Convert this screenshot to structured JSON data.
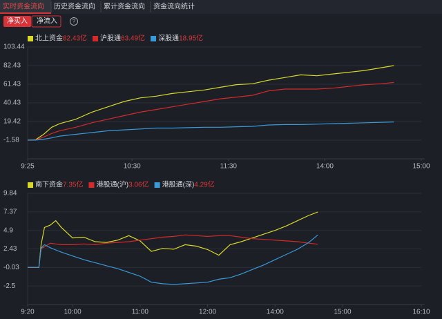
{
  "tabs": [
    "实时资金流向",
    "历史资金流向",
    "累计资金流向",
    "资金流向统计"
  ],
  "toggles": [
    "净买入",
    "净流入"
  ],
  "help": "?",
  "chart_data": [
    {
      "type": "line",
      "series": [
        {
          "name": "北上资金",
          "latest": "82.43亿",
          "color": "#d8d82c",
          "values": [
            -1.6,
            -1.0,
            5,
            13,
            17,
            22,
            30,
            36,
            42,
            46,
            48,
            51,
            53,
            55,
            58,
            61,
            62,
            66,
            69,
            72,
            71,
            73,
            75,
            77,
            80,
            82.43
          ]
        },
        {
          "name": "沪股通",
          "latest": "63.49亿",
          "color": "#d42a2a",
          "values": [
            -1.6,
            -1.3,
            2,
            6,
            9,
            13,
            18,
            22,
            26,
            30,
            33,
            36,
            39,
            42,
            45,
            47,
            49,
            54,
            56,
            56,
            56,
            57,
            59,
            61,
            62,
            63.49
          ]
        },
        {
          "name": "深股通",
          "latest": "18.95亿",
          "color": "#3a9ad8",
          "values": [
            -1.6,
            -1.5,
            -0.5,
            1,
            3,
            5,
            7,
            9,
            10,
            11,
            12,
            12,
            12.5,
            13,
            13,
            13.5,
            14,
            15.5,
            16,
            16,
            16.5,
            17,
            17.5,
            18,
            18.5,
            18.95
          ]
        }
      ],
      "x": [
        0,
        5,
        10,
        15,
        20,
        30,
        40,
        50,
        60,
        70,
        80,
        90,
        100,
        110,
        120,
        130,
        140,
        150,
        160,
        170,
        180,
        190,
        200,
        210,
        220,
        228
      ],
      "xlim": [
        0,
        245
      ],
      "xticks": [
        {
          "value": 0,
          "label": "9:25"
        },
        {
          "value": 65,
          "label": "10:30"
        },
        {
          "value": 125,
          "label": "11:30"
        },
        {
          "value": 185,
          "label": "14:00"
        },
        {
          "value": 245,
          "label": "15:00"
        }
      ],
      "ylim": [
        -22.58,
        103.44
      ],
      "yticks": [
        103.44,
        82.43,
        61.43,
        40.43,
        19.42,
        -1.58
      ],
      "grid": true
    },
    {
      "type": "line",
      "series": [
        {
          "name": "南下资金",
          "latest": "7.35亿",
          "color": "#d8d82c",
          "values": [
            -0.03,
            -0.03,
            3.0,
            5.3,
            5.6,
            6.2,
            5.3,
            3.9,
            4.0,
            3.4,
            3.3,
            3.6,
            4.2,
            3.5,
            2.1,
            2.5,
            2.4,
            3.0,
            2.8,
            2.35,
            1.6,
            3.0,
            3.4,
            3.9,
            4.4,
            4.9,
            5.5,
            6.2,
            6.9,
            7.35
          ]
        },
        {
          "name": "港股通(沪)",
          "latest": "3.06亿",
          "color": "#d42a2a",
          "values": [
            -0.03,
            -0.03,
            2.5,
            2.7,
            3.2,
            3.1,
            3.0,
            3.0,
            3.1,
            3.0,
            3.2,
            3.3,
            3.4,
            3.6,
            3.8,
            4.0,
            4.1,
            4.3,
            4.2,
            4.1,
            4.2,
            4.2,
            4.0,
            3.8,
            3.7,
            3.6,
            3.5,
            3.4,
            3.2,
            3.06
          ]
        },
        {
          "name": "港股通(深)",
          "latest": "4.29亿",
          "color": "#3a9ad8",
          "values": [
            -0.03,
            -0.03,
            2.5,
            3.0,
            2.6,
            2.3,
            2.0,
            1.5,
            1.0,
            0.6,
            0.2,
            -0.2,
            -0.7,
            -1.2,
            -2.0,
            -2.2,
            -2.3,
            -2.2,
            -2.1,
            -2.0,
            -1.6,
            -1.4,
            -0.9,
            -0.3,
            0.3,
            1.0,
            1.7,
            2.4,
            3.3,
            4.29
          ]
        }
      ],
      "x": [
        0,
        10,
        12,
        15,
        20,
        25,
        30,
        40,
        50,
        60,
        70,
        80,
        90,
        100,
        110,
        120,
        130,
        140,
        150,
        160,
        170,
        180,
        190,
        200,
        210,
        220,
        230,
        240,
        250,
        258
      ],
      "xlim": [
        0,
        350
      ],
      "xticks": [
        {
          "value": 0,
          "label": "9:20"
        },
        {
          "value": 40,
          "label": "10:00"
        },
        {
          "value": 100,
          "label": "11:00"
        },
        {
          "value": 160,
          "label": "12:00"
        },
        {
          "value": 220,
          "label": "14:00"
        },
        {
          "value": 280,
          "label": "15:00"
        },
        {
          "value": 350,
          "label": "16:10"
        }
      ],
      "ylim": [
        -4.97,
        9.84
      ],
      "yticks": [
        9.84,
        7.37,
        4.9,
        2.43,
        -0.03,
        -2.5
      ],
      "grid": true
    }
  ]
}
